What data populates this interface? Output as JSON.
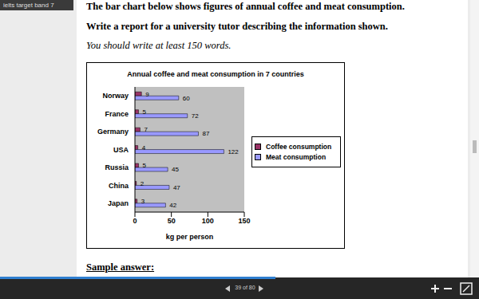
{
  "header": {
    "title": "ielts target band 7"
  },
  "page": {
    "task": "The bar chart below shows figures of annual coffee and meat consumption.",
    "instruction": "Write a report for a university tutor describing the information shown.",
    "note": "You should write at least 150 words.",
    "sample": "Sample answer:"
  },
  "viewer": {
    "page_label": "39 of 80"
  },
  "chart_data": {
    "type": "bar",
    "orientation": "horizontal",
    "title": "Annual coffee and meat consumption in 7 countries",
    "x_label": "kg per person",
    "categories": [
      "Norway",
      "France",
      "Germany",
      "USA",
      "Russia",
      "China",
      "Japan"
    ],
    "series": [
      {
        "name": "Coffee consumption",
        "color": "#993366",
        "values": [
          9,
          5,
          7,
          4,
          5,
          2,
          3
        ]
      },
      {
        "name": "Meat consumption",
        "color": "#9999ff",
        "values": [
          60,
          72,
          87,
          122,
          45,
          47,
          42
        ]
      }
    ],
    "xlim": [
      0,
      150
    ],
    "xticks": [
      0,
      50,
      100,
      150
    ],
    "data_labels": true,
    "grid": false,
    "legend": "right"
  }
}
